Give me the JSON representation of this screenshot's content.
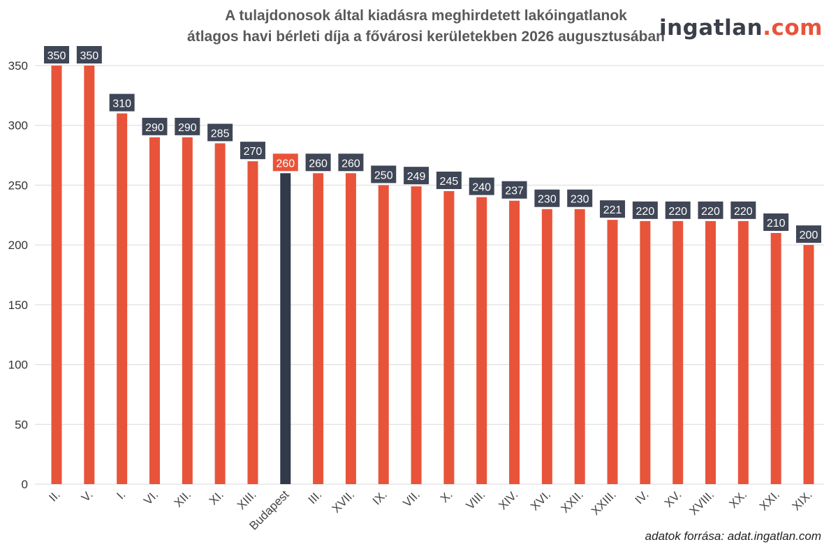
{
  "title_line1": "A tulajdonosok által kiadásra meghirdetett lakóingatlanok",
  "title_line2": "átlagos havi bérleti díja a fővárosi kerületekben 2026 augusztusában",
  "logo": {
    "part1": "ingatlan",
    "part2": ".com"
  },
  "source": "adatok forrása: adat.ingatlan.com",
  "colors": {
    "bar": "#e8543a",
    "highlight_bar": "#323a4a",
    "label_bg": "#3f4656",
    "highlight_label_bg": "#e8543a",
    "grid": "#d9d9d9"
  },
  "chart_data": {
    "type": "bar",
    "title": "A tulajdonosok által kiadásra meghirdetett lakóingatlanok átlagos havi bérleti díja a fővárosi kerületekben 2026 augusztusában",
    "xlabel": "",
    "ylabel": "",
    "categories": [
      "II.",
      "V.",
      "I.",
      "VI.",
      "XII.",
      "XI.",
      "XIII.",
      "Budapest",
      "III.",
      "XVII.",
      "IX.",
      "VII.",
      "X.",
      "VIII.",
      "XIV.",
      "XVI.",
      "XXII.",
      "XXIII.",
      "IV.",
      "XV.",
      "XVIII.",
      "XX.",
      "XXI.",
      "XIX."
    ],
    "values": [
      350,
      350,
      310,
      290,
      290,
      285,
      270,
      260,
      260,
      260,
      250,
      249,
      245,
      240,
      237,
      230,
      230,
      221,
      220,
      220,
      220,
      220,
      210,
      200
    ],
    "highlight": "Budapest",
    "ylim": [
      0,
      350
    ],
    "yticks": [
      0,
      50,
      100,
      150,
      200,
      250,
      300,
      350
    ],
    "grid": true,
    "data_labels": true
  }
}
